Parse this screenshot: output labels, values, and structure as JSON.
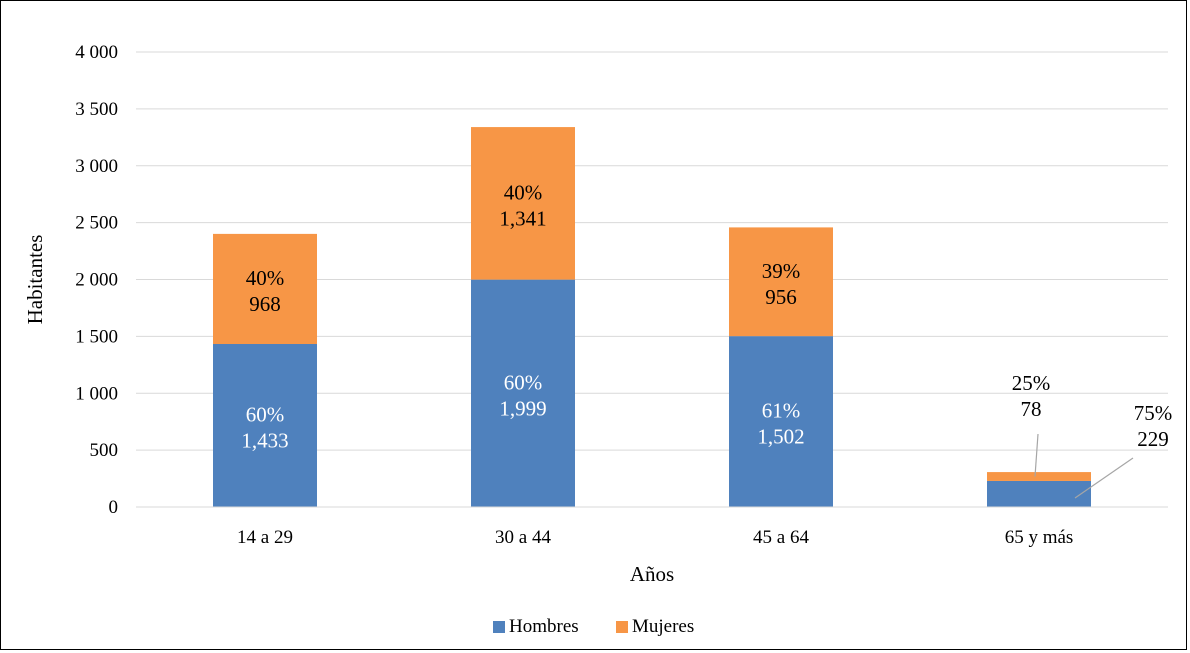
{
  "chart_data": {
    "type": "bar",
    "stacked": true,
    "categories": [
      "14 a 29",
      "30 a 44",
      "45 a 64",
      "65 y más"
    ],
    "series": [
      {
        "name": "Hombres",
        "color": "#4f81bd",
        "values": [
          1433,
          1999,
          1502,
          229
        ],
        "labels": [
          {
            "pct": "60%",
            "value": "1,433"
          },
          {
            "pct": "60%",
            "value": "1,999"
          },
          {
            "pct": "61%",
            "value": "1,502"
          },
          {
            "pct": "75%",
            "value": "229"
          }
        ]
      },
      {
        "name": "Mujeres",
        "color": "#f79646",
        "values": [
          968,
          1341,
          956,
          78
        ],
        "labels": [
          {
            "pct": "40%",
            "value": "968"
          },
          {
            "pct": "40%",
            "value": "1,341"
          },
          {
            "pct": "39%",
            "value": "956"
          },
          {
            "pct": "25%",
            "value": "78"
          }
        ]
      }
    ],
    "xlabel": "Años",
    "ylabel": "Habitantes",
    "ylim": [
      0,
      4000
    ],
    "yticks": [
      {
        "value": 0,
        "label": "0"
      },
      {
        "value": 500,
        "label": "500"
      },
      {
        "value": 1000,
        "label": "1 000"
      },
      {
        "value": 1500,
        "label": "1 500"
      },
      {
        "value": 2000,
        "label": "2 000"
      },
      {
        "value": 2500,
        "label": "2 500"
      },
      {
        "value": 3000,
        "label": "3 000"
      },
      {
        "value": 3500,
        "label": "3 500"
      },
      {
        "value": 4000,
        "label": "4 000"
      }
    ],
    "grid": true,
    "legend_position": "bottom"
  }
}
